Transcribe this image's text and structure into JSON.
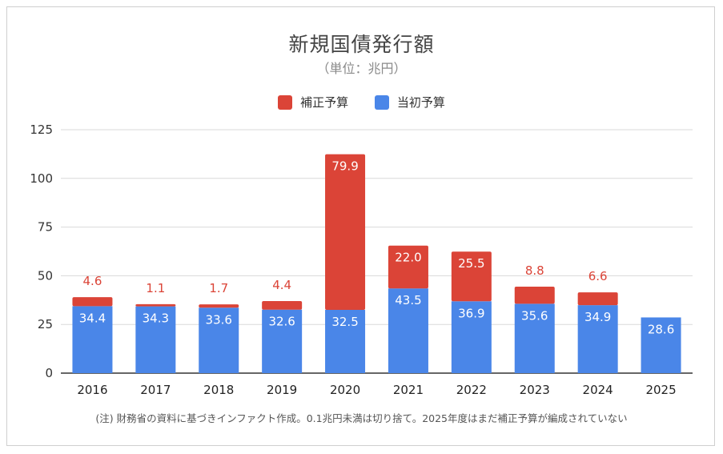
{
  "chart_data": {
    "type": "bar",
    "stacked": true,
    "title": "新規国債発行額",
    "subtitle": "（単位：兆円）",
    "categories": [
      "2016",
      "2017",
      "2018",
      "2019",
      "2020",
      "2021",
      "2022",
      "2023",
      "2024",
      "2025"
    ],
    "series": [
      {
        "name": "当初予算",
        "color": "#4a86e8",
        "label_color": "#ffffff",
        "values": [
          34.4,
          34.3,
          33.6,
          32.6,
          32.5,
          43.5,
          36.9,
          35.6,
          34.9,
          28.6
        ]
      },
      {
        "name": "補正予算",
        "color": "#db4437",
        "label_color": "#db4437",
        "values": [
          4.6,
          1.1,
          1.7,
          4.4,
          79.9,
          22.0,
          25.5,
          8.8,
          6.6,
          null
        ]
      }
    ],
    "legend_order": [
      "補正予算",
      "当初予算"
    ],
    "legend_position": "top",
    "ylim": [
      0,
      125
    ],
    "yticks": [
      0,
      25,
      50,
      75,
      100,
      125
    ],
    "grid": true,
    "xlabel": "",
    "ylabel": ""
  },
  "footnote": "(注) 財務省の資料に基づきインファクト作成。0.1兆円未満は切り捨て。2025年度はまだ補正予算が編成されていない"
}
